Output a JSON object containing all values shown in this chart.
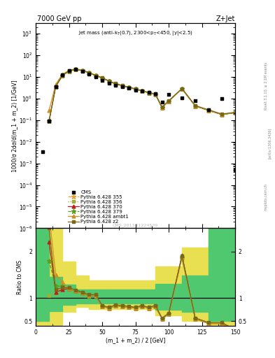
{
  "title_left": "7000 GeV pp",
  "title_right": "Z+Jet",
  "watermark": "CMS_2013_I1224539",
  "ylabel_main": "1000/σ 2dσ/d(m_1 + m_2) [1/GeV]",
  "ylabel_ratio": "Ratio to CMS",
  "xlabel": "(m_1 + m_2) / 2 [GeV]",
  "xlim": [
    0,
    150
  ],
  "ylim_main": [
    1e-06,
    3000.0
  ],
  "ylim_ratio": [
    0.4,
    2.5
  ],
  "cms_x": [
    5,
    10,
    15,
    20,
    25,
    30,
    35,
    40,
    45,
    50,
    55,
    60,
    65,
    70,
    75,
    80,
    85,
    90,
    95,
    100,
    110,
    120,
    130,
    140,
    150
  ],
  "cms_y": [
    0.0035,
    0.09,
    3.5,
    12,
    20,
    22,
    18,
    13,
    10,
    7,
    5,
    4.2,
    3.5,
    3.0,
    2.5,
    2.2,
    1.9,
    1.6,
    0.7,
    1.5,
    1.1,
    0.8,
    0.3,
    1.0,
    0.0005
  ],
  "mc_x": [
    10,
    15,
    20,
    25,
    30,
    35,
    40,
    45,
    50,
    55,
    60,
    65,
    70,
    75,
    80,
    85,
    90,
    95,
    100,
    110,
    120,
    130,
    140,
    150
  ],
  "p355_y": [
    0.09,
    3.5,
    11.5,
    18.5,
    22.0,
    19.5,
    15.5,
    11.5,
    8.8,
    6.3,
    4.7,
    3.9,
    3.2,
    2.7,
    2.2,
    1.85,
    1.55,
    0.38,
    0.75,
    2.8,
    0.45,
    0.28,
    0.18,
    0.22
  ],
  "p356_y": [
    0.09,
    3.5,
    11.5,
    18.5,
    22.0,
    19.5,
    15.5,
    11.5,
    8.8,
    6.3,
    4.7,
    3.9,
    3.2,
    2.7,
    2.2,
    1.85,
    1.55,
    0.38,
    0.75,
    2.8,
    0.45,
    0.28,
    0.18,
    0.22
  ],
  "p370_y": [
    0.09,
    3.5,
    11.5,
    18.5,
    22.0,
    19.5,
    15.5,
    11.5,
    8.8,
    6.3,
    4.7,
    3.9,
    3.2,
    2.7,
    2.2,
    1.85,
    1.55,
    0.38,
    0.75,
    2.8,
    0.45,
    0.28,
    0.18,
    0.22
  ],
  "p379_y": [
    0.09,
    3.5,
    11.5,
    18.5,
    22.0,
    19.5,
    15.5,
    11.5,
    8.8,
    6.3,
    4.7,
    3.9,
    3.2,
    2.7,
    2.2,
    1.85,
    1.55,
    0.38,
    0.75,
    2.8,
    0.45,
    0.28,
    0.18,
    0.22
  ],
  "pambt1_y": [
    0.28,
    4.5,
    13.0,
    20.0,
    23.0,
    20.0,
    16.0,
    12.0,
    9.0,
    6.5,
    4.8,
    4.0,
    3.3,
    2.7,
    2.2,
    1.9,
    1.6,
    0.38,
    0.75,
    2.8,
    0.45,
    0.28,
    0.18,
    0.22
  ],
  "pz2_y": [
    0.09,
    3.6,
    11.8,
    18.8,
    22.3,
    19.8,
    15.8,
    11.8,
    9.0,
    6.5,
    4.9,
    4.0,
    3.3,
    2.8,
    2.3,
    1.9,
    1.6,
    0.4,
    0.78,
    2.9,
    0.47,
    0.3,
    0.19,
    0.23
  ],
  "ratio_x": [
    10,
    15,
    20,
    25,
    30,
    35,
    40,
    45,
    50,
    55,
    60,
    65,
    70,
    75,
    80,
    85,
    90,
    95,
    100,
    110,
    120,
    130,
    140,
    150
  ],
  "r355": [
    2.5,
    1.15,
    1.2,
    1.2,
    1.15,
    1.1,
    1.05,
    1.05,
    0.82,
    0.78,
    0.83,
    0.82,
    0.8,
    0.78,
    0.82,
    0.78,
    0.82,
    0.55,
    0.65,
    1.85,
    0.55,
    0.45,
    0.45,
    0.3
  ],
  "r356": [
    1.05,
    1.1,
    1.2,
    1.2,
    1.15,
    1.1,
    1.05,
    1.05,
    0.82,
    0.78,
    0.83,
    0.82,
    0.8,
    0.78,
    0.82,
    0.78,
    0.82,
    0.55,
    0.65,
    1.85,
    0.55,
    0.45,
    0.45,
    0.3
  ],
  "r370": [
    2.2,
    1.12,
    1.18,
    1.2,
    1.15,
    1.1,
    1.05,
    1.05,
    0.82,
    0.78,
    0.83,
    0.82,
    0.8,
    0.78,
    0.82,
    0.78,
    0.82,
    0.55,
    0.65,
    1.92,
    0.55,
    0.45,
    0.45,
    0.3
  ],
  "r379": [
    1.8,
    1.25,
    1.25,
    1.2,
    1.15,
    1.1,
    1.05,
    1.05,
    0.82,
    0.78,
    0.83,
    0.82,
    0.8,
    0.78,
    0.82,
    0.78,
    0.82,
    0.55,
    0.65,
    1.88,
    0.55,
    0.45,
    0.45,
    0.3
  ],
  "rambt1": [
    2.8,
    1.5,
    1.35,
    1.2,
    1.15,
    1.1,
    1.05,
    1.05,
    0.82,
    0.78,
    0.83,
    0.82,
    0.8,
    0.78,
    0.82,
    0.78,
    0.82,
    0.55,
    0.65,
    1.88,
    0.55,
    0.45,
    0.45,
    0.3
  ],
  "rz2": [
    2.5,
    1.18,
    1.22,
    1.22,
    1.17,
    1.12,
    1.07,
    1.07,
    0.84,
    0.8,
    0.85,
    0.84,
    0.82,
    0.8,
    0.84,
    0.8,
    0.84,
    0.57,
    0.67,
    1.9,
    0.57,
    0.47,
    0.47,
    0.32
  ],
  "band_edges": [
    0,
    10,
    20,
    30,
    40,
    55,
    90,
    110,
    130,
    150
  ],
  "green_lo": [
    0.5,
    0.72,
    0.85,
    0.88,
    0.88,
    0.88,
    0.75,
    0.7,
    0.5
  ],
  "green_hi": [
    2.5,
    1.45,
    1.28,
    1.18,
    1.18,
    1.18,
    1.3,
    1.48,
    2.5
  ],
  "yellow_lo": [
    0.4,
    0.42,
    0.7,
    0.8,
    0.76,
    0.76,
    0.62,
    0.5,
    0.4
  ],
  "yellow_hi": [
    2.5,
    2.5,
    1.78,
    1.48,
    1.38,
    1.38,
    1.68,
    2.08,
    2.5
  ],
  "color_355": "#e8a030",
  "color_356": "#a0b030",
  "color_370": "#b82020",
  "color_379": "#58a018",
  "color_ambt1": "#d09020",
  "color_z2": "#786818",
  "green_color": "#50c870",
  "yellow_color": "#e8e050"
}
